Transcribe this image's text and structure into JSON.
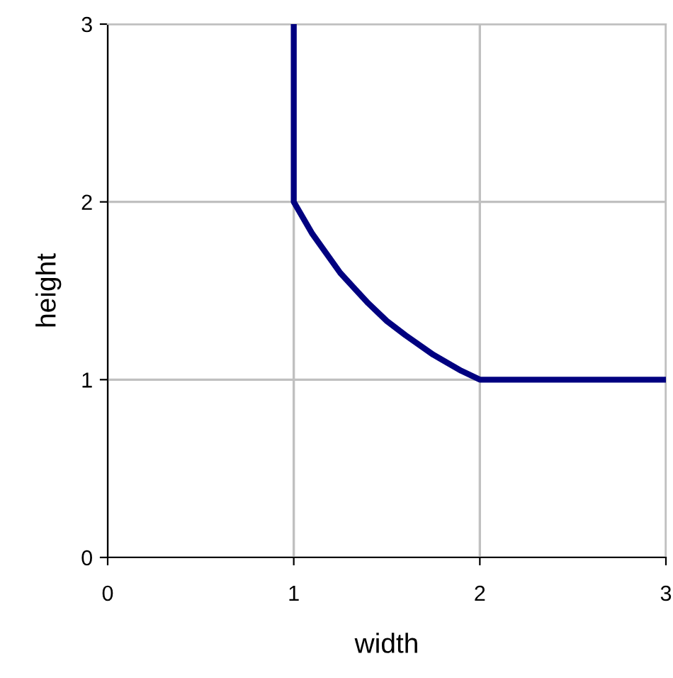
{
  "chart_data": {
    "type": "line",
    "xlabel": "width",
    "ylabel": "height",
    "x": [
      1,
      1,
      1.1,
      1.25,
      1.4,
      1.5,
      1.6,
      1.75,
      1.9,
      2,
      2.5,
      3
    ],
    "series": [
      {
        "color": "#000080",
        "values": [
          3,
          2,
          1.82,
          1.6,
          1.43,
          1.33,
          1.25,
          1.14,
          1.05,
          1,
          1,
          1
        ]
      }
    ],
    "xlim": [
      0,
      3
    ],
    "ylim": [
      0,
      3
    ],
    "xticks": [
      0,
      1,
      2,
      3
    ],
    "yticks": [
      0,
      1,
      2,
      3
    ],
    "grid": true,
    "marker": "none",
    "line_style": "solid"
  }
}
